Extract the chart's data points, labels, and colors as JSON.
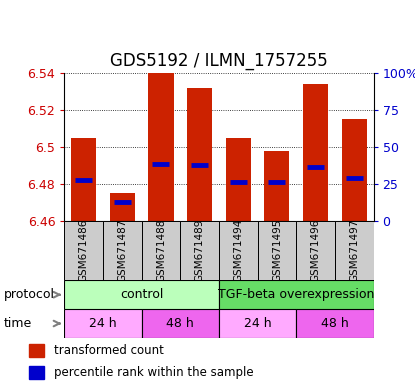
{
  "title": "GDS5192 / ILMN_1757255",
  "samples": [
    "GSM671486",
    "GSM671487",
    "GSM671488",
    "GSM671489",
    "GSM671494",
    "GSM671495",
    "GSM671496",
    "GSM671497"
  ],
  "bar_bottoms": [
    6.46,
    6.46,
    6.46,
    6.46,
    6.46,
    6.46,
    6.46,
    6.46
  ],
  "bar_tops": [
    6.505,
    6.475,
    6.54,
    6.532,
    6.505,
    6.498,
    6.534,
    6.515
  ],
  "blue_marks": [
    6.482,
    6.47,
    6.491,
    6.49,
    6.481,
    6.481,
    6.489,
    6.483
  ],
  "ylim": [
    6.46,
    6.54
  ],
  "yticks": [
    6.46,
    6.48,
    6.5,
    6.52,
    6.54
  ],
  "ytick_labels": [
    "6.46",
    "6.48",
    "6.5",
    "6.52",
    "6.54"
  ],
  "right_yticks_pct": [
    0,
    25,
    50,
    75,
    100
  ],
  "right_ytick_labels": [
    "0",
    "25",
    "50",
    "75",
    "100%"
  ],
  "bar_color": "#cc2200",
  "blue_mark_color": "#0000cc",
  "bar_width": 0.65,
  "ctrl_color": "#bbffbb",
  "tgf_color": "#66dd66",
  "time_color_light": "#ffaaff",
  "time_color_dark": "#ee66ee",
  "sample_bg_color": "#cccccc",
  "xlabel_color": "#cc0000",
  "right_ylabel_color": "#0000cc",
  "title_fontsize": 12,
  "tick_fontsize": 9,
  "sample_label_fontsize": 7.5,
  "legend_items": [
    {
      "label": "transformed count",
      "color": "#cc2200"
    },
    {
      "label": "percentile rank within the sample",
      "color": "#0000cc"
    }
  ]
}
